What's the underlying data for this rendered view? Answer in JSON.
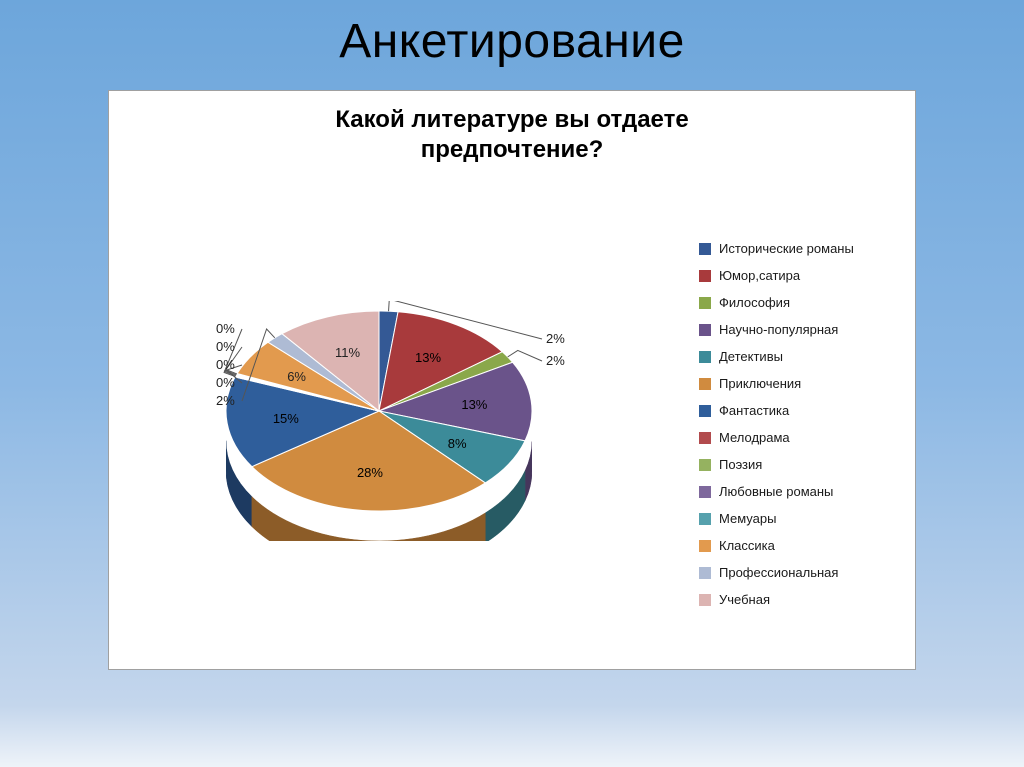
{
  "slide": {
    "title": "Анкетирование",
    "title_fontsize": 48,
    "background_gradient": [
      "#6da6db",
      "#8cb8e4",
      "#c4d6ec",
      "#eef3f9"
    ]
  },
  "chart": {
    "type": "pie",
    "title": "Какой литературе вы отдаете\nпредпочтение?",
    "title_fontsize": 24,
    "title_weight": "bold",
    "background_color": "#ffffff",
    "label_fontsize": 13,
    "depth_3d": 30,
    "start_angle_deg": -90,
    "series": [
      {
        "label": "Исторические романы",
        "value": 2,
        "pct": "2%",
        "color": "#345995",
        "side_color": "#213a62"
      },
      {
        "label": "Юмор,сатира",
        "value": 13,
        "pct": "13%",
        "color": "#a83a3c",
        "side_color": "#6f2627"
      },
      {
        "label": "Философия",
        "value": 2,
        "pct": "2%",
        "color": "#8aa84a",
        "side_color": "#5b7131"
      },
      {
        "label": "Научно-популярная",
        "value": 13,
        "pct": "13%",
        "color": "#6a538a",
        "side_color": "#46365c"
      },
      {
        "label": "Детективы",
        "value": 8,
        "pct": "8%",
        "color": "#3c8b99",
        "side_color": "#275b64"
      },
      {
        "label": "Приключения",
        "value": 28,
        "pct": "28%",
        "color": "#d08b3f",
        "side_color": "#8c5c28"
      },
      {
        "label": "Фантастика",
        "value": 15,
        "pct": "15%",
        "color": "#2f5e9b",
        "side_color": "#1d3a61"
      },
      {
        "label": "Мелодрама",
        "value": 0,
        "pct": "0%",
        "color": "#b24b4d",
        "side_color": "#773233"
      },
      {
        "label": "Поэзия",
        "value": 0,
        "pct": "0%",
        "color": "#95b260",
        "side_color": "#64773f"
      },
      {
        "label": "Любовные романы",
        "value": 0,
        "pct": "0%",
        "color": "#7e689c",
        "side_color": "#544469"
      },
      {
        "label": "Мемуары",
        "value": 0,
        "pct": "0%",
        "color": "#56a1ad",
        "side_color": "#396b73"
      },
      {
        "label": "Классика",
        "value": 6,
        "pct": "6%",
        "color": "#e29a4e",
        "side_color": "#9a6833"
      },
      {
        "label": "Профессиональная",
        "value": 2,
        "pct": "2%",
        "color": "#aebbd4",
        "side_color": "#75829a"
      },
      {
        "label": "Учебная",
        "value": 11,
        "pct": "11%",
        "color": "#dcb4b2",
        "side_color": "#9a7b79"
      }
    ],
    "legend": {
      "position": "right",
      "swatch_size": 12,
      "item_gap": 12
    }
  }
}
